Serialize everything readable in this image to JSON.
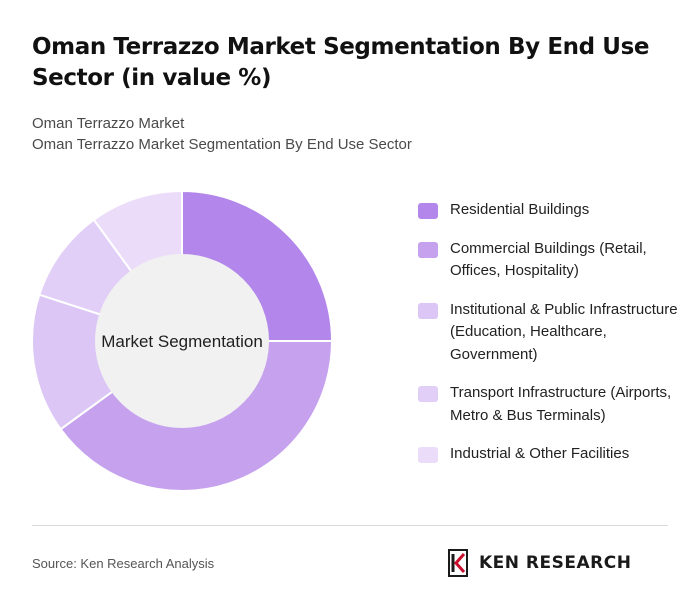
{
  "header": {
    "title": "Oman Terrazzo Market Segmentation By End Use Sector (in value %)",
    "subtitle_1": "Oman Terrazzo Market",
    "subtitle_2": "Oman Terrazzo Market Segmentation By End Use Sector"
  },
  "chart_data": {
    "type": "pie",
    "variant": "donut",
    "center_label": "Market Segmentation",
    "categories": [
      "Residential Buildings",
      "Commercial Buildings (Retail, Offices, Hospitality)",
      "Institutional & Public Infrastructure (Education, Healthcare, Government)",
      "Transport Infrastructure (Airports, Metro & Bus Terminals)",
      "Industrial & Other Facilities"
    ],
    "values": [
      25,
      40,
      15,
      10,
      10
    ],
    "colors": [
      "#b286ea",
      "#c6a2ee",
      "#dbc6f5",
      "#e2cff7",
      "#ebdcf9"
    ],
    "legend_position": "right"
  },
  "footer": {
    "source": "Source: Ken Research Analysis",
    "logo_text": "KEN RESEARCH"
  }
}
